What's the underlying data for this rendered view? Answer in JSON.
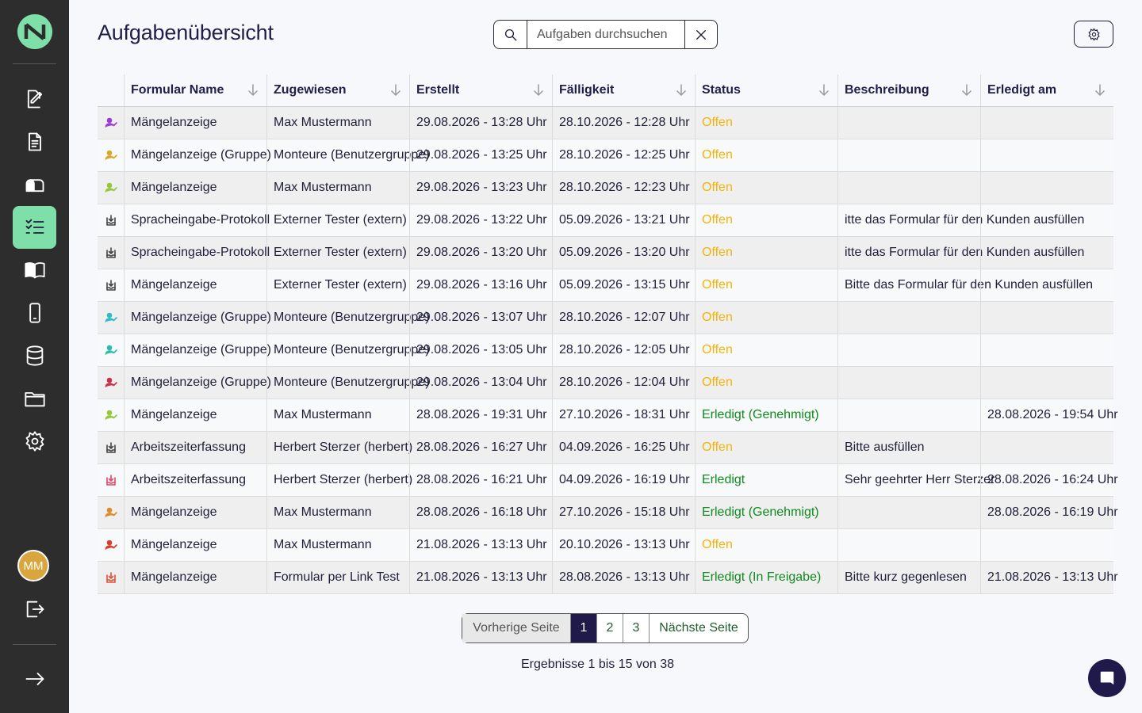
{
  "page": {
    "title": "Aufgabenübersicht"
  },
  "search": {
    "placeholder": "Aufgaben durchsuchen",
    "value": ""
  },
  "sidebar": {
    "items": [
      {
        "name": "sidebar-item-editor",
        "icon": "edit-document-icon"
      },
      {
        "name": "sidebar-item-forms",
        "icon": "document-icon"
      },
      {
        "name": "sidebar-item-inbox",
        "icon": "mailbox-icon"
      },
      {
        "name": "sidebar-item-tasks",
        "icon": "checklist-icon",
        "active": true
      },
      {
        "name": "sidebar-item-guide",
        "icon": "book-icon"
      },
      {
        "name": "sidebar-item-devices",
        "icon": "phone-icon"
      },
      {
        "name": "sidebar-item-data",
        "icon": "database-icon"
      },
      {
        "name": "sidebar-item-files",
        "icon": "folder-icon"
      },
      {
        "name": "sidebar-item-settings",
        "icon": "gear-icon"
      }
    ],
    "avatar_initials": "MM"
  },
  "table": {
    "columns": [
      "Formular Name",
      "Zugewiesen",
      "Erstellt",
      "Fälligkeit",
      "Status",
      "Beschreibung",
      "Erledigt am"
    ],
    "rows": [
      {
        "icon": "user-check-icon",
        "icon_color": "#9b3bd6",
        "cells": [
          "Mängelanzeige",
          "Max Mustermann",
          "29.08.2026 - 13:28 Uhr",
          "28.10.2026 - 12:28 Uhr",
          "Offen",
          "",
          ""
        ],
        "status": "open"
      },
      {
        "icon": "user-check-icon",
        "icon_color": "#d6a92a",
        "cells": [
          "Mängelanzeige (Gruppe)",
          "Monteure (Benutzergruppe)",
          "29.08.2026 - 13:25 Uhr",
          "28.10.2026 - 12:25 Uhr",
          "Offen",
          "",
          ""
        ],
        "status": "open"
      },
      {
        "icon": "user-check-icon",
        "icon_color": "#93c83a",
        "cells": [
          "Mängelanzeige",
          "Max Mustermann",
          "29.08.2026 - 13:23 Uhr",
          "28.10.2026 - 12:23 Uhr",
          "Offen",
          "",
          ""
        ],
        "status": "open"
      },
      {
        "icon": "inbox-download-icon",
        "icon_color": "#444444",
        "cells": [
          "Spracheingabe-Protokoll",
          "Externer Tester (extern)",
          "29.08.2026 - 13:22 Uhr",
          "05.09.2026 - 13:21 Uhr",
          "Offen",
          "itte das Formular für den Kunden ausfüllen",
          ""
        ],
        "status": "open"
      },
      {
        "icon": "inbox-download-icon",
        "icon_color": "#444444",
        "cells": [
          "Spracheingabe-Protokoll",
          "Externer Tester (extern)",
          "29.08.2026 - 13:20 Uhr",
          "05.09.2026 - 13:20 Uhr",
          "Offen",
          "itte das Formular für den Kunden ausfüllen",
          ""
        ],
        "status": "open"
      },
      {
        "icon": "inbox-download-icon",
        "icon_color": "#444444",
        "cells": [
          "Mängelanzeige",
          "Externer Tester (extern)",
          "29.08.2026 - 13:16 Uhr",
          "05.09.2026 - 13:15 Uhr",
          "Offen",
          "Bitte das Formular für den Kunden ausfüllen",
          ""
        ],
        "status": "open"
      },
      {
        "icon": "user-check-icon",
        "icon_color": "#2bbcc4",
        "cells": [
          "Mängelanzeige (Gruppe)",
          "Monteure (Benutzergruppe)",
          "29.08.2026 - 13:07 Uhr",
          "28.10.2026 - 12:07 Uhr",
          "Offen",
          "",
          ""
        ],
        "status": "open"
      },
      {
        "icon": "user-check-icon",
        "icon_color": "#2bbcaa",
        "cells": [
          "Mängelanzeige (Gruppe)",
          "Monteure (Benutzergruppe)",
          "29.08.2026 - 13:05 Uhr",
          "28.10.2026 - 12:05 Uhr",
          "Offen",
          "",
          ""
        ],
        "status": "open"
      },
      {
        "icon": "user-check-icon",
        "icon_color": "#c8304a",
        "cells": [
          "Mängelanzeige (Gruppe)",
          "Monteure (Benutzergruppe)",
          "29.08.2026 - 13:04 Uhr",
          "28.10.2026 - 12:04 Uhr",
          "Offen",
          "",
          ""
        ],
        "status": "open"
      },
      {
        "icon": "user-check-icon",
        "icon_color": "#93c83a",
        "cells": [
          "Mängelanzeige",
          "Max Mustermann",
          "28.08.2026 - 19:31 Uhr",
          "27.10.2026 - 18:31 Uhr",
          "Erledigt (Genehmigt)",
          "",
          "28.08.2026 - 19:54 Uhr"
        ],
        "status": "done"
      },
      {
        "icon": "inbox-download-icon",
        "icon_color": "#444444",
        "cells": [
          "Arbeitszeiterfassung",
          "Herbert Sterzer (herbert)",
          "28.08.2026 - 16:27 Uhr",
          "04.09.2026 - 16:25 Uhr",
          "Offen",
          "Bitte ausfüllen",
          ""
        ],
        "status": "open"
      },
      {
        "icon": "inbox-download-icon",
        "icon_color": "#e04a6a",
        "cells": [
          "Arbeitszeiterfassung",
          "Herbert Sterzer (herbert)",
          "28.08.2026 - 16:21 Uhr",
          "04.09.2026 - 16:19 Uhr",
          "Erledigt",
          "Sehr geehrter Herr Sterzer",
          "28.08.2026 - 16:24 Uhr"
        ],
        "status": "done"
      },
      {
        "icon": "user-check-icon",
        "icon_color": "#e08a2a",
        "cells": [
          "Mängelanzeige",
          "Max Mustermann",
          "28.08.2026 - 16:18 Uhr",
          "27.10.2026 - 15:18 Uhr",
          "Erledigt (Genehmigt)",
          "",
          "28.08.2026 - 16:19 Uhr"
        ],
        "status": "done"
      },
      {
        "icon": "user-check-icon",
        "icon_color": "#d6402a",
        "cells": [
          "Mängelanzeige",
          "Max Mustermann",
          "21.08.2026 - 13:13 Uhr",
          "20.10.2026 - 13:13 Uhr",
          "Offen",
          "",
          ""
        ],
        "status": "open"
      },
      {
        "icon": "inbox-download-icon",
        "icon_color": "#e0503a",
        "cells": [
          "Mängelanzeige",
          "Formular per Link Test",
          "21.08.2026 - 13:13 Uhr",
          "28.08.2026 - 13:13 Uhr",
          "Erledigt (In Freigabe)",
          "Bitte kurz gegenlesen",
          "21.08.2026 - 13:13 Uhr"
        ],
        "status": "done"
      }
    ]
  },
  "pagination": {
    "prev": "Vorherige Seite",
    "pages": [
      "1",
      "2",
      "3"
    ],
    "current": "1",
    "next": "Nächste Seite"
  },
  "results_text": "Ergebnisse 1 bis 15 von 38",
  "colors": {
    "sidebar_bg": "#2d2d2d",
    "accent": "#7ee0a8",
    "status_open": "#f2b30a",
    "status_done": "#0f8a1e",
    "primary": "#1f1a4a"
  }
}
